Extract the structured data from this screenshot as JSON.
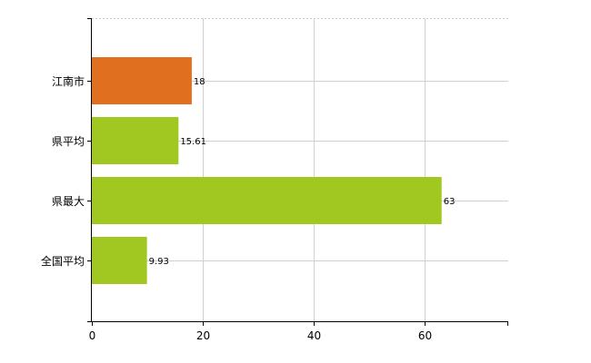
{
  "chart_data": {
    "type": "bar",
    "orientation": "horizontal",
    "categories": [
      "江南市",
      "県平均",
      "県最大",
      "全国平均"
    ],
    "values": [
      18,
      15.61,
      63,
      9.93
    ],
    "value_labels": [
      "18",
      "15.61",
      "63",
      "9.93"
    ],
    "colors": [
      "#e07020",
      "#a0c820",
      "#a0c820",
      "#a0c820"
    ],
    "xlim": [
      0,
      75
    ],
    "xticks": [
      0,
      20,
      40,
      60
    ],
    "xtick_labels": [
      "0",
      "20",
      "40",
      "60"
    ],
    "grid": true,
    "legend": "none"
  }
}
